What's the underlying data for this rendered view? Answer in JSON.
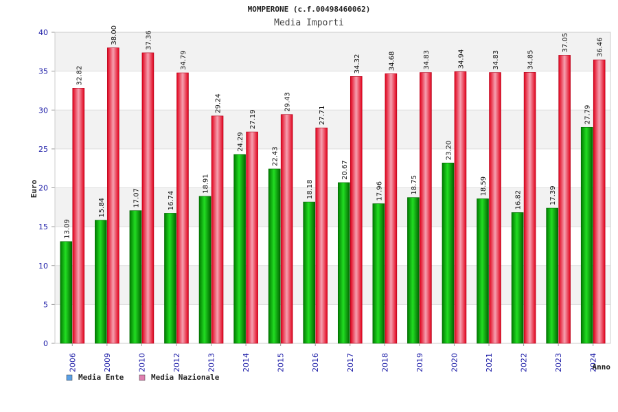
{
  "chart_data": {
    "type": "bar",
    "title": "MOMPERONE (c.f.00498460062)",
    "subtitle": "Media Importi",
    "xlabel": "Anno",
    "ylabel": "Euro",
    "ylim": [
      0,
      40
    ],
    "yticks": [
      0,
      5,
      10,
      15,
      20,
      25,
      30,
      35,
      40
    ],
    "grid": true,
    "legend_position": "bottom-left",
    "categories": [
      "2006",
      "2009",
      "2010",
      "2012",
      "2013",
      "2014",
      "2015",
      "2016",
      "2017",
      "2018",
      "2019",
      "2020",
      "2021",
      "2022",
      "2023",
      "2024"
    ],
    "series": [
      {
        "name": "Media Ente",
        "color": "#00aa00",
        "legend_color": "#5aa0e6",
        "values": [
          13.09,
          15.84,
          17.07,
          16.74,
          18.91,
          24.29,
          22.43,
          18.18,
          20.67,
          17.96,
          18.75,
          23.2,
          18.59,
          16.82,
          17.39,
          27.79
        ],
        "labels": [
          "13.09",
          "15.84",
          "17.07",
          "16.74",
          "18.91",
          "24.29",
          "22.43",
          "18.18",
          "20.67",
          "17.96",
          "18.75",
          "23.20",
          "18.59",
          "16.82",
          "17.39",
          "27.79"
        ]
      },
      {
        "name": "Media Nazionale",
        "color": "#e8102a",
        "legend_color": "#e080b0",
        "values": [
          32.82,
          38.0,
          37.36,
          34.79,
          29.24,
          27.19,
          29.43,
          27.71,
          34.32,
          34.68,
          34.83,
          34.94,
          34.83,
          34.85,
          37.05,
          36.46
        ],
        "labels": [
          "32.82",
          "38.00",
          "37.36",
          "34.79",
          "29.24",
          "27.19",
          "29.43",
          "27.71",
          "34.32",
          "34.68",
          "34.83",
          "34.94",
          "34.83",
          "34.85",
          "37.05",
          "36.46"
        ]
      }
    ]
  }
}
